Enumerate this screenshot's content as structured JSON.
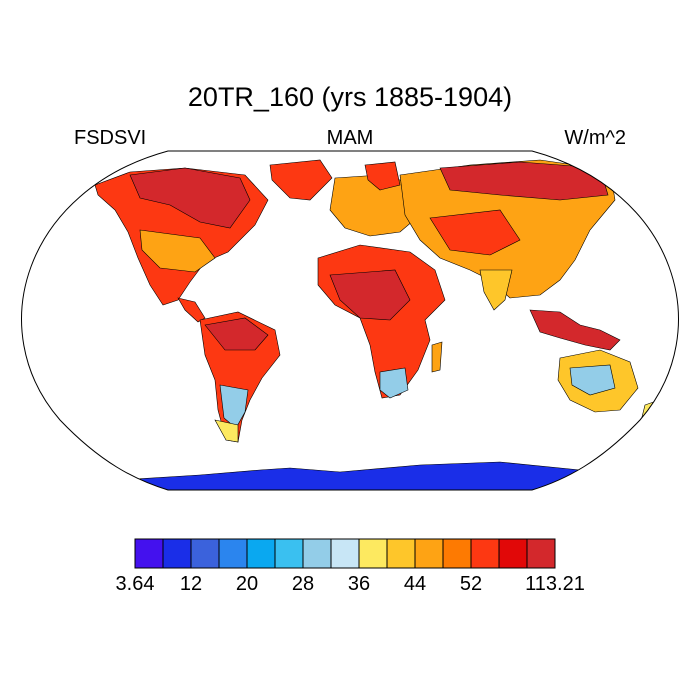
{
  "title": "20TR_160 (yrs 1885-1904)",
  "left_label": "FSDSVI",
  "center_label": "MAM",
  "right_label": "W/m^2",
  "colorbar": {
    "colors": [
      "#4411ee",
      "#1a2ee8",
      "#3b62dc",
      "#2b85ee",
      "#0aa8f0",
      "#3ac0f0",
      "#93cde8",
      "#c8e6f6",
      "#fde960",
      "#fec62a",
      "#fea314",
      "#fd7a02",
      "#fd3812",
      "#e10808",
      "#d3282c"
    ],
    "tick_labels": [
      "3.64",
      "12",
      "20",
      "28",
      "36",
      "44",
      "52",
      "113.21"
    ]
  },
  "map_colors": {
    "ocean": "#ffffff",
    "land_hot": "#d3282c",
    "land_warm": "#fd3812",
    "land_mid": "#fea314",
    "land_mild": "#fec62a",
    "land_light": "#fde960",
    "land_cool": "#93cde8",
    "antarctica": "#1a2ee8",
    "outline": "#000000"
  }
}
